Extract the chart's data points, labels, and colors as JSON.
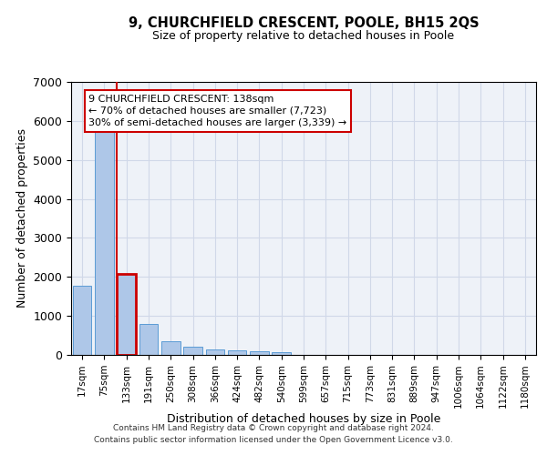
{
  "title": "9, CHURCHFIELD CRESCENT, POOLE, BH15 2QS",
  "subtitle": "Size of property relative to detached houses in Poole",
  "xlabel": "Distribution of detached houses by size in Poole",
  "ylabel": "Number of detached properties",
  "footer_line1": "Contains HM Land Registry data © Crown copyright and database right 2024.",
  "footer_line2": "Contains public sector information licensed under the Open Government Licence v3.0.",
  "bar_labels": [
    "17sqm",
    "75sqm",
    "133sqm",
    "191sqm",
    "250sqm",
    "308sqm",
    "366sqm",
    "424sqm",
    "482sqm",
    "540sqm",
    "599sqm",
    "657sqm",
    "715sqm",
    "773sqm",
    "831sqm",
    "889sqm",
    "947sqm",
    "1006sqm",
    "1064sqm",
    "1122sqm",
    "1180sqm"
  ],
  "bar_values": [
    1780,
    5800,
    2080,
    800,
    340,
    200,
    140,
    110,
    100,
    80,
    0,
    0,
    0,
    0,
    0,
    0,
    0,
    0,
    0,
    0,
    0
  ],
  "bar_color": "#aec7e8",
  "bar_edgecolor": "#5b9bd5",
  "highlight_bar_index": 2,
  "highlight_color": "#cc0000",
  "annotation_line1": "9 CHURCHFIELD CRESCENT: 138sqm",
  "annotation_line2": "← 70% of detached houses are smaller (7,723)",
  "annotation_line3": "30% of semi-detached houses are larger (3,339) →",
  "annotation_box_edgecolor": "#cc0000",
  "ylim": [
    0,
    7000
  ],
  "grid_color": "#d0d8e8",
  "background_color": "#eef2f8",
  "yticks": [
    0,
    1000,
    2000,
    3000,
    4000,
    5000,
    6000,
    7000
  ]
}
